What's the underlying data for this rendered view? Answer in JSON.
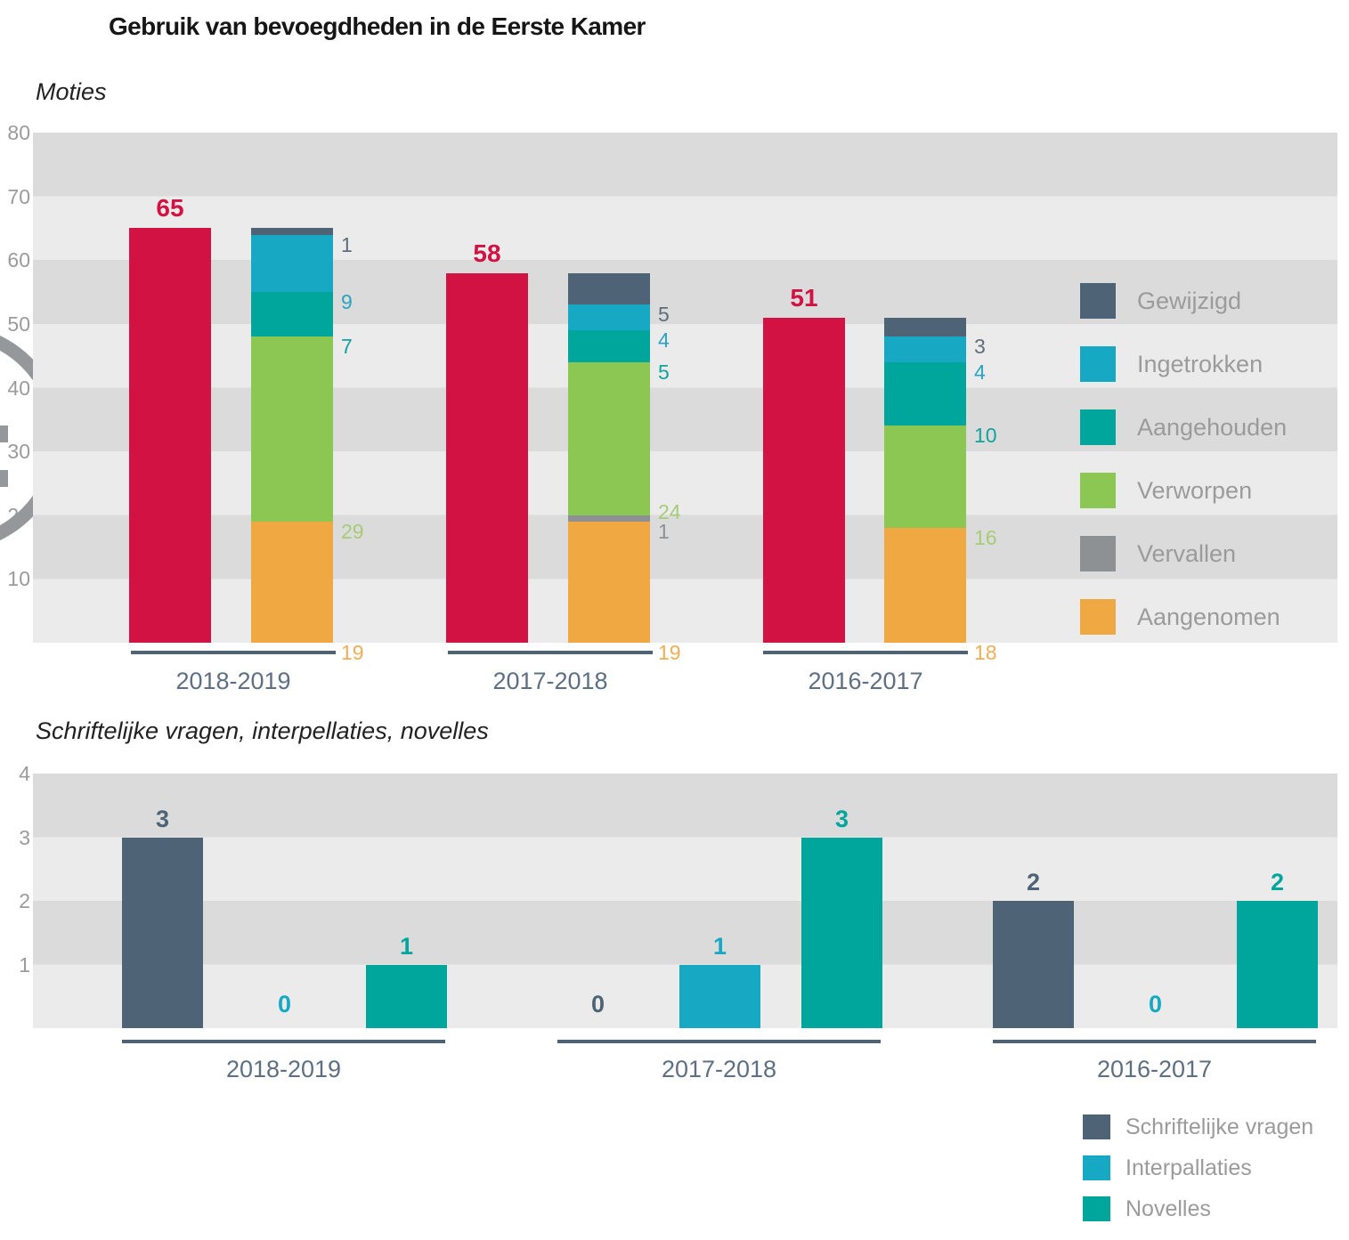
{
  "title": "Gebruik van bevoegdheden in de Eerste Kamer",
  "colors": {
    "band_dark": "#dbdbdc",
    "band_light": "#ebebec",
    "axis_text": "#9b9b9b",
    "category_text": "#5d7083",
    "axis_line": "#4e6376",
    "watermark": "#95989b",
    "total_red": "#d11243"
  },
  "chart_data": [
    {
      "type": "bar",
      "title": "Moties",
      "categories": [
        "2018-2019",
        "2017-2018",
        "2016-2017"
      ],
      "totals": {
        "values": [
          65,
          58,
          51
        ],
        "color": "#d11243"
      },
      "series": [
        {
          "name": "Gewijzigd",
          "color": "#4e6376",
          "label_color": "#5f6e7a",
          "values": [
            1,
            5,
            3
          ]
        },
        {
          "name": "Ingetrokken",
          "color": "#17a8c3",
          "label_color": "#2aa2c2",
          "values": [
            9,
            4,
            4
          ]
        },
        {
          "name": "Aangehouden",
          "color": "#00a69c",
          "label_color": "#12a39b",
          "values": [
            7,
            5,
            10
          ]
        },
        {
          "name": "Verworpen",
          "color": "#8cc653",
          "label_color": "#a6cc77",
          "values": [
            29,
            24,
            16
          ]
        },
        {
          "name": "Vervallen",
          "color": "#8e9193",
          "label_color": "#8e9193",
          "values": [
            0,
            1,
            0
          ]
        },
        {
          "name": "Aangenomen",
          "color": "#f0a843",
          "label_color": "#efae55",
          "values": [
            19,
            19,
            18
          ]
        }
      ],
      "stacked": true,
      "ylim": [
        0,
        80
      ],
      "yticks": [
        80,
        70,
        60,
        50,
        40,
        30,
        20,
        10
      ],
      "grid": "banded",
      "legend_position": "right"
    },
    {
      "type": "bar",
      "title": "Schriftelijke vragen, interpellaties, novelles",
      "categories": [
        "2018-2019",
        "2017-2018",
        "2016-2017"
      ],
      "series": [
        {
          "name": "Schriftelijke vragen",
          "color": "#4e6376",
          "values": [
            3,
            0,
            2
          ]
        },
        {
          "name": "Interpallaties",
          "color": "#17a8c3",
          "values": [
            0,
            1,
            0
          ]
        },
        {
          "name": "Novelles",
          "color": "#00a69c",
          "values": [
            1,
            3,
            2
          ]
        }
      ],
      "stacked": false,
      "ylim": [
        0,
        4
      ],
      "yticks": [
        4,
        3,
        2,
        1
      ],
      "grid": "banded",
      "legend_position": "bottom-right"
    }
  ]
}
